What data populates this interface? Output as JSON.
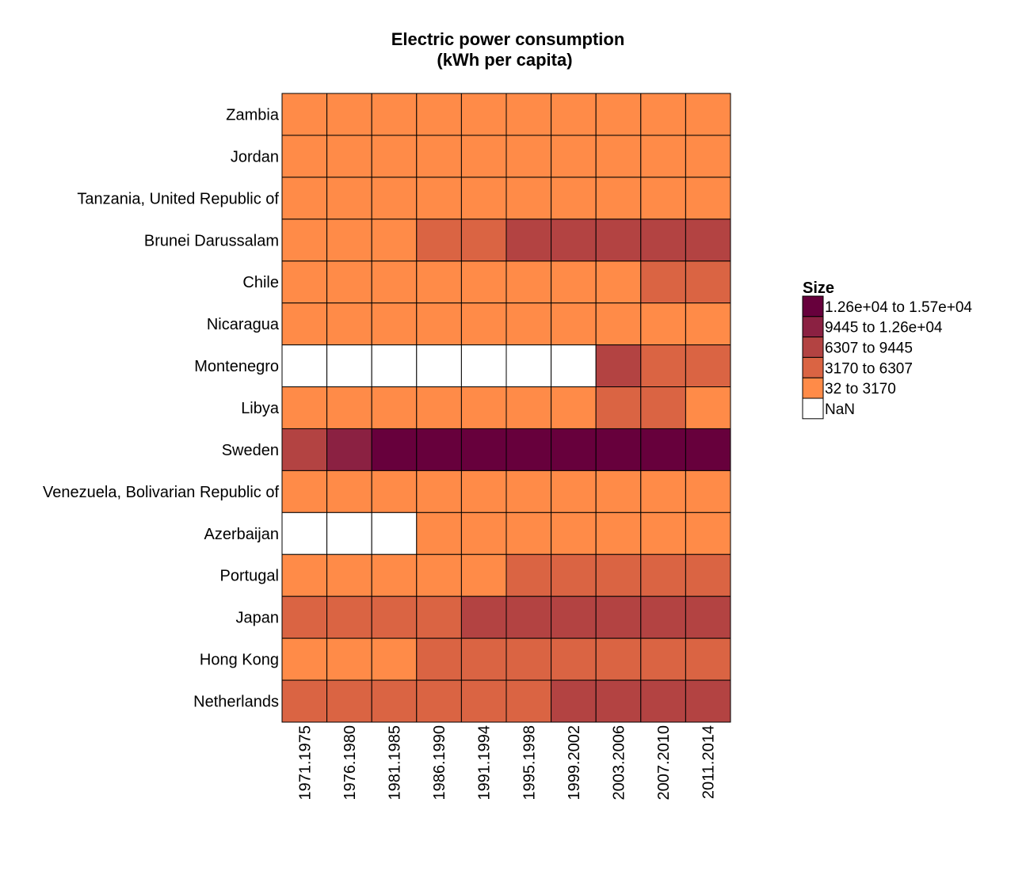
{
  "chart_data": {
    "type": "heatmap",
    "title": [
      "Electric power consumption",
      "(kWh per capita)"
    ],
    "xlabel": "",
    "ylabel": "",
    "x": [
      "1971.1975",
      "1976.1980",
      "1981.1985",
      "1986.1990",
      "1991.1994",
      "1995.1998",
      "1999.2002",
      "2003.2006",
      "2007.2010",
      "2011.2014"
    ],
    "y": [
      "Zambia",
      "Jordan",
      "Tanzania, United Republic of",
      "Brunei Darussalam",
      "Chile",
      "Nicaragua",
      "Montenegro",
      "Libya",
      "Sweden",
      "Venezuela, Bolivarian Republic of",
      "Azerbaijan",
      "Portugal",
      "Japan",
      "Hong Kong",
      "Netherlands"
    ],
    "bins": [
      {
        "label": "1.26e+04 to 1.57e+04",
        "color": "#67003c"
      },
      {
        "label": "9445 to 1.26e+04",
        "color": "#8b2142"
      },
      {
        "label": "6307 to 9445",
        "color": "#b34342"
      },
      {
        "label": "3170 to 6307",
        "color": "#da6443"
      },
      {
        "label": "32 to 3170",
        "color": "#ff8b48"
      },
      {
        "label": "NaN",
        "color": "#ffffff"
      }
    ],
    "cells": [
      [
        4,
        4,
        4,
        4,
        4,
        4,
        4,
        4,
        4,
        4
      ],
      [
        4,
        4,
        4,
        4,
        4,
        4,
        4,
        4,
        4,
        4
      ],
      [
        4,
        4,
        4,
        4,
        4,
        4,
        4,
        4,
        4,
        4
      ],
      [
        4,
        4,
        4,
        3,
        3,
        2,
        2,
        2,
        2,
        2
      ],
      [
        4,
        4,
        4,
        4,
        4,
        4,
        4,
        4,
        3,
        3
      ],
      [
        4,
        4,
        4,
        4,
        4,
        4,
        4,
        4,
        4,
        4
      ],
      [
        5,
        5,
        5,
        5,
        5,
        5,
        5,
        2,
        3,
        3
      ],
      [
        4,
        4,
        4,
        4,
        4,
        4,
        4,
        3,
        3,
        4
      ],
      [
        2,
        1,
        0,
        0,
        0,
        0,
        0,
        0,
        0,
        0
      ],
      [
        4,
        4,
        4,
        4,
        4,
        4,
        4,
        4,
        4,
        4
      ],
      [
        5,
        5,
        5,
        4,
        4,
        4,
        4,
        4,
        4,
        4
      ],
      [
        4,
        4,
        4,
        4,
        4,
        3,
        3,
        3,
        3,
        3
      ],
      [
        3,
        3,
        3,
        3,
        2,
        2,
        2,
        2,
        2,
        2
      ],
      [
        4,
        4,
        4,
        3,
        3,
        3,
        3,
        3,
        3,
        3
      ],
      [
        3,
        3,
        3,
        3,
        3,
        3,
        2,
        2,
        2,
        2
      ]
    ],
    "legend": {
      "title": "Size",
      "position": "right"
    }
  }
}
